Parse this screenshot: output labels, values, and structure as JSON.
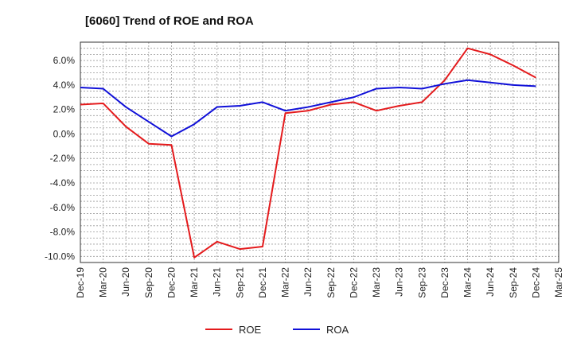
{
  "chart_data": {
    "type": "line",
    "title": "[6060]  Trend of ROE and ROA",
    "xlabel": "",
    "ylabel": "",
    "categories": [
      "Dec-19",
      "Mar-20",
      "Jun-20",
      "Sep-20",
      "Dec-20",
      "Mar-21",
      "Jun-21",
      "Sep-21",
      "Dec-21",
      "Mar-22",
      "Jun-22",
      "Sep-22",
      "Dec-22",
      "Mar-23",
      "Jun-23",
      "Sep-23",
      "Dec-23",
      "Mar-24",
      "Jun-24",
      "Sep-24",
      "Dec-24",
      "Mar-25"
    ],
    "ylim": [
      -10.5,
      7.5
    ],
    "yticks": [
      6.0,
      4.0,
      2.0,
      0.0,
      -2.0,
      -4.0,
      -6.0,
      -8.0,
      -10.0
    ],
    "ytick_labels": [
      "6.0%",
      "4.0%",
      "2.0%",
      "0.0%",
      "-2.0%",
      "-4.0%",
      "-6.0%",
      "-8.0%",
      "-10.0%"
    ],
    "grid": true,
    "legend_position": "bottom-center",
    "series": [
      {
        "name": "ROE",
        "color": "#e41a1c",
        "values": [
          2.4,
          2.5,
          0.6,
          -0.8,
          -0.9,
          -10.1,
          -8.8,
          -9.4,
          -9.2,
          1.7,
          1.9,
          2.4,
          2.6,
          1.9,
          2.3,
          2.6,
          4.4,
          7.0,
          6.5,
          5.6,
          4.6,
          null
        ]
      },
      {
        "name": "ROA",
        "color": "#1010d8",
        "values": [
          3.8,
          3.7,
          2.2,
          1.0,
          -0.2,
          0.8,
          2.2,
          2.3,
          2.6,
          1.9,
          2.2,
          2.6,
          3.0,
          3.7,
          3.8,
          3.7,
          4.1,
          4.4,
          4.2,
          4.0,
          3.9,
          null
        ]
      }
    ]
  }
}
